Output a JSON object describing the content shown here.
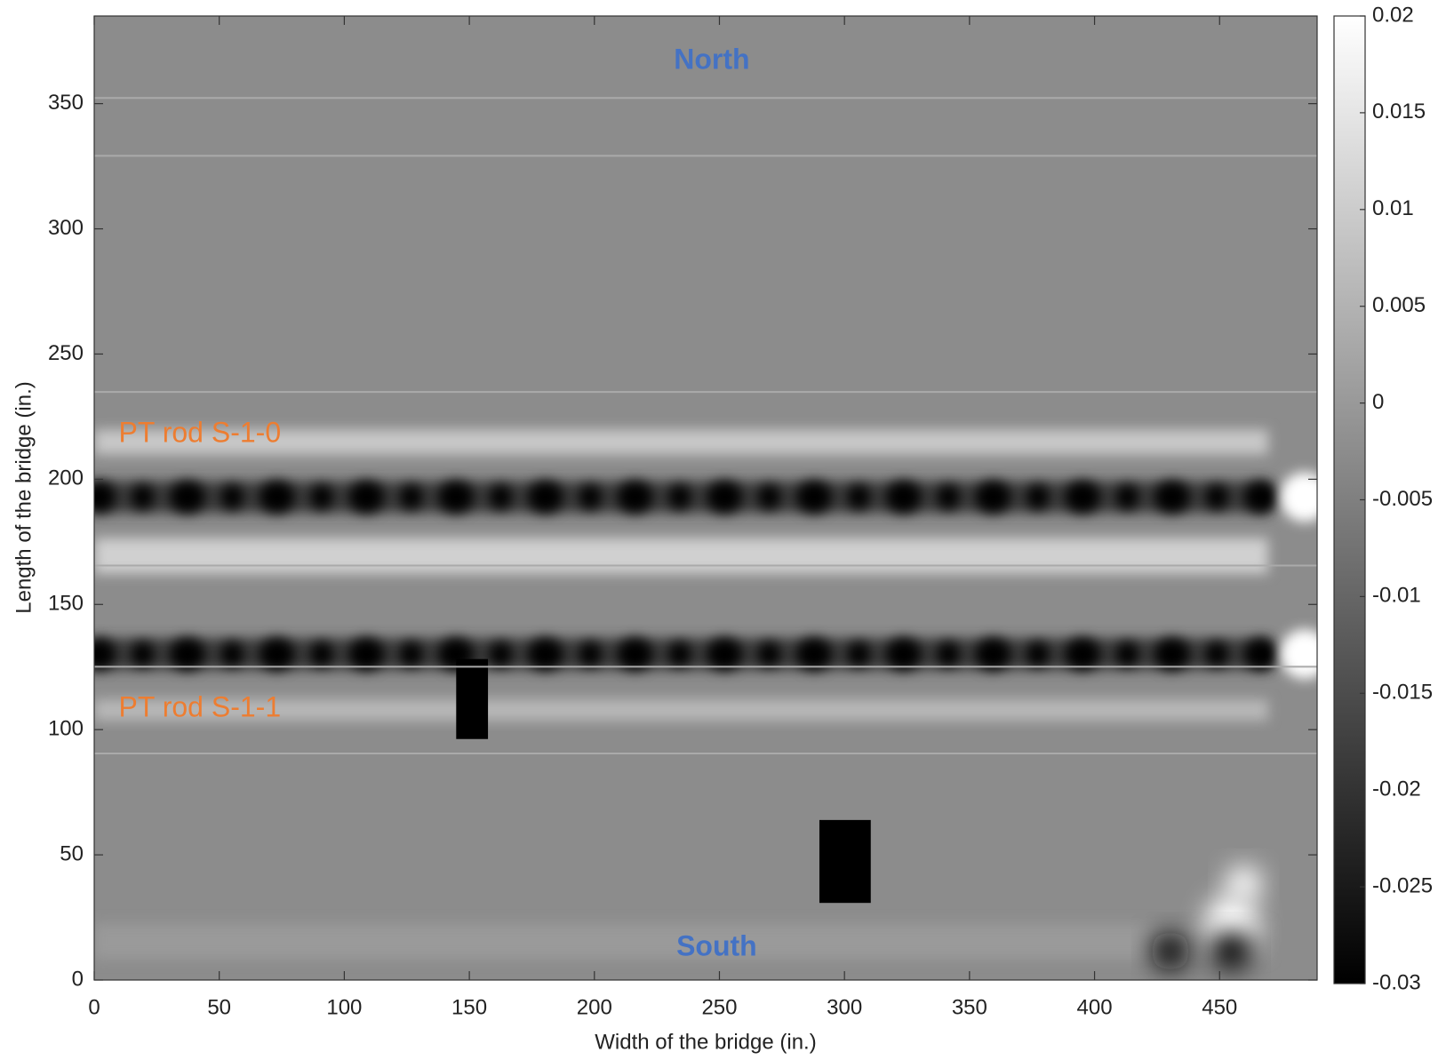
{
  "chart_data": {
    "type": "heatmap",
    "x_label": "Width of the bridge (in.)",
    "y_label": "Length of the bridge (in.)",
    "xlim": [
      0,
      489
    ],
    "ylim": [
      0,
      385
    ],
    "xticks": [
      0,
      50,
      100,
      150,
      200,
      250,
      300,
      350,
      400,
      450
    ],
    "yticks": [
      0,
      50,
      100,
      150,
      200,
      250,
      300,
      350
    ],
    "colormap": "gray",
    "clim": [
      -0.03,
      0.02
    ],
    "cticks": [
      -0.03,
      -0.025,
      -0.02,
      -0.015,
      -0.01,
      -0.005,
      0,
      0.005,
      0.01,
      0.015,
      0.02
    ],
    "annotations": [
      {
        "text": "North",
        "color": "#4472c4"
      },
      {
        "text": "South",
        "color": "#4472c4"
      },
      {
        "text": "PT rod S-1-0",
        "color": "#ed7d31"
      },
      {
        "text": "PT rod S-1-1",
        "color": "#ed7d31"
      }
    ]
  }
}
